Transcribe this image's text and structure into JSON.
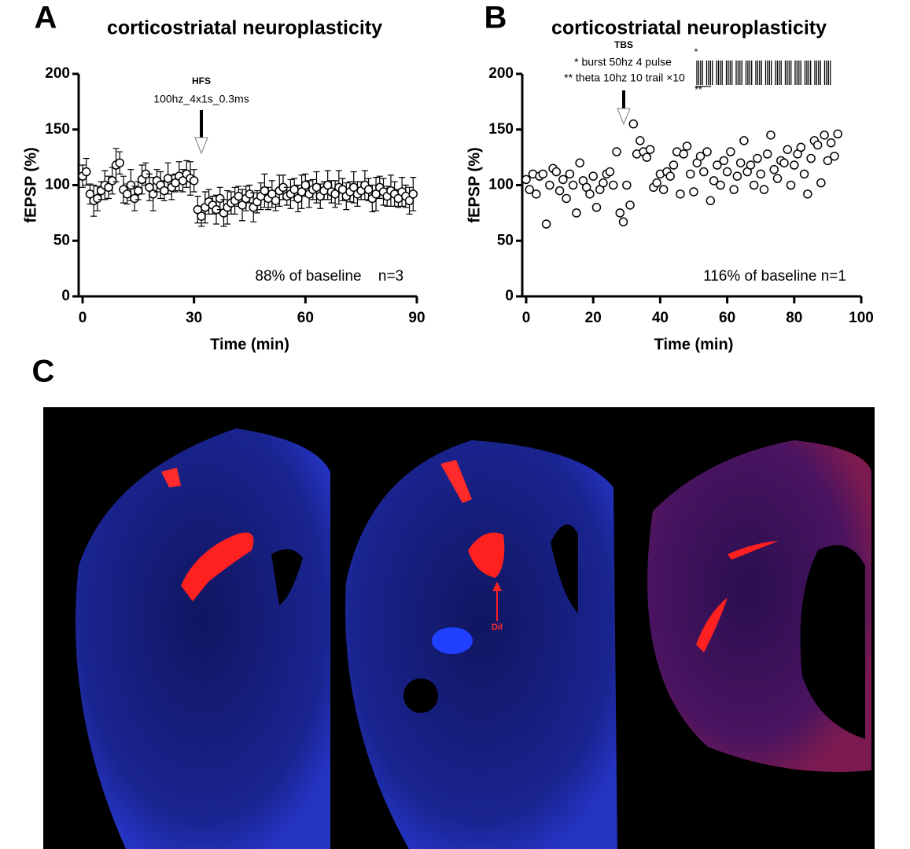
{
  "panel_labels": [
    "A",
    "B",
    "C"
  ],
  "chart_data": [
    {
      "type": "scatter",
      "title": "corticostriatal neuroplasticity",
      "xlabel": "Time (min)",
      "ylabel": "fEPSP (%)",
      "xlim": [
        0,
        90
      ],
      "ylim": [
        0,
        200
      ],
      "xticks": [
        0,
        30,
        60,
        90
      ],
      "yticks": [
        0,
        50,
        100,
        150,
        200
      ],
      "x": [
        0,
        1,
        2,
        3,
        4,
        5,
        6,
        7,
        8,
        9,
        10,
        11,
        12,
        13,
        14,
        15,
        16,
        17,
        18,
        19,
        20,
        21,
        22,
        23,
        24,
        25,
        26,
        27,
        28,
        29,
        30,
        31,
        32,
        33,
        34,
        35,
        36,
        37,
        38,
        39,
        40,
        41,
        42,
        43,
        44,
        45,
        46,
        47,
        48,
        49,
        50,
        51,
        52,
        53,
        54,
        55,
        56,
        57,
        58,
        59,
        60,
        61,
        62,
        63,
        64,
        65,
        66,
        67,
        68,
        69,
        70,
        71,
        72,
        73,
        74,
        75,
        76,
        77,
        78,
        79,
        80,
        81,
        82,
        83,
        84,
        85,
        86,
        87,
        88,
        89
      ],
      "series": [
        {
          "color": "#000000",
          "values": [
            108,
            112,
            92,
            86,
            88,
            95,
            100,
            98,
            104,
            118,
            120,
            96,
            92,
            100,
            88,
            95,
            105,
            110,
            98,
            92,
            104,
            100,
            95,
            106,
            98,
            102,
            108,
            104,
            110,
            106,
            104,
            78,
            72,
            80,
            85,
            82,
            78,
            88,
            75,
            80,
            84,
            86,
            90,
            82,
            88,
            92,
            80,
            85,
            90,
            95,
            88,
            92,
            86,
            95,
            98,
            90,
            92,
            96,
            88,
            94,
            100,
            92,
            96,
            98,
            90,
            95,
            100,
            94,
            92,
            98,
            96,
            90,
            94,
            98,
            92,
            95,
            100,
            96,
            88,
            92,
            98,
            94,
            90,
            95,
            92,
            88,
            94,
            90,
            86,
            92
          ],
          "errors": [
            10,
            12,
            9,
            14,
            11,
            8,
            13,
            10,
            12,
            15,
            10,
            12,
            9,
            14,
            11,
            8,
            13,
            10,
            12,
            15,
            10,
            12,
            9,
            14,
            11,
            8,
            13,
            10,
            12,
            15,
            10,
            12,
            9,
            14,
            11,
            8,
            13,
            10,
            12,
            15,
            10,
            12,
            9,
            14,
            11,
            8,
            13,
            10,
            12,
            15,
            10,
            12,
            9,
            14,
            11,
            8,
            13,
            10,
            12,
            15,
            10,
            12,
            9,
            14,
            11,
            8,
            13,
            10,
            12,
            15,
            10,
            12,
            9,
            14,
            11,
            8,
            13,
            10,
            12,
            15,
            10,
            12,
            9,
            14,
            11,
            8,
            13,
            10,
            12,
            15
          ]
        }
      ],
      "annotations": [
        "HFS",
        "100hz_4x1s_0.3ms",
        "88% of baseline",
        "n=3"
      ]
    },
    {
      "type": "scatter",
      "title": "corticostriatal neuroplasticity",
      "xlabel": "Time (min)",
      "ylabel": "fEPSP (%)",
      "xlim": [
        0,
        100
      ],
      "ylim": [
        0,
        200
      ],
      "xticks": [
        0,
        20,
        40,
        60,
        80,
        100
      ],
      "yticks": [
        0,
        50,
        100,
        150,
        200
      ],
      "x": [
        0,
        1,
        2,
        3,
        4,
        5,
        6,
        7,
        8,
        9,
        10,
        11,
        12,
        13,
        14,
        15,
        16,
        17,
        18,
        19,
        20,
        21,
        22,
        23,
        24,
        25,
        26,
        27,
        28,
        29,
        30,
        31,
        32,
        33,
        34,
        35,
        36,
        37,
        38,
        39,
        40,
        41,
        42,
        43,
        44,
        45,
        46,
        47,
        48,
        49,
        50,
        51,
        52,
        53,
        54,
        55,
        56,
        57,
        58,
        59,
        60,
        61,
        62,
        63,
        64,
        65,
        66,
        67,
        68,
        69,
        70,
        71,
        72,
        73,
        74,
        75,
        76,
        77,
        78,
        79,
        80,
        81,
        82,
        83,
        84,
        85,
        86,
        87,
        88,
        89,
        90,
        91,
        92,
        93
      ],
      "series": [
        {
          "color": "#000000",
          "values": [
            105,
            96,
            110,
            92,
            108,
            110,
            65,
            100,
            115,
            112,
            95,
            105,
            88,
            110,
            100,
            75,
            120,
            104,
            98,
            92,
            108,
            80,
            96,
            102,
            110,
            112,
            100,
            130,
            75,
            67,
            100,
            82,
            155,
            128,
            140,
            130,
            125,
            132,
            98,
            102,
            110,
            96,
            112,
            108,
            118,
            130,
            92,
            128,
            135,
            110,
            94,
            120,
            126,
            112,
            130,
            86,
            104,
            118,
            100,
            122,
            112,
            130,
            96,
            108,
            120,
            140,
            112,
            118,
            100,
            124,
            110,
            96,
            128,
            145,
            114,
            106,
            122,
            120,
            132,
            100,
            118,
            128,
            134,
            110,
            92,
            124,
            140,
            136,
            102,
            145,
            122,
            138,
            126,
            146
          ]
        }
      ],
      "annotations": [
        "TBS",
        "* burst 50hz 4 pulse",
        "** theta 10hz 10 trail ×10",
        "*",
        "**",
        "116% of baseline n=1"
      ]
    }
  ],
  "figure_c": {
    "annotation": "DiI"
  }
}
